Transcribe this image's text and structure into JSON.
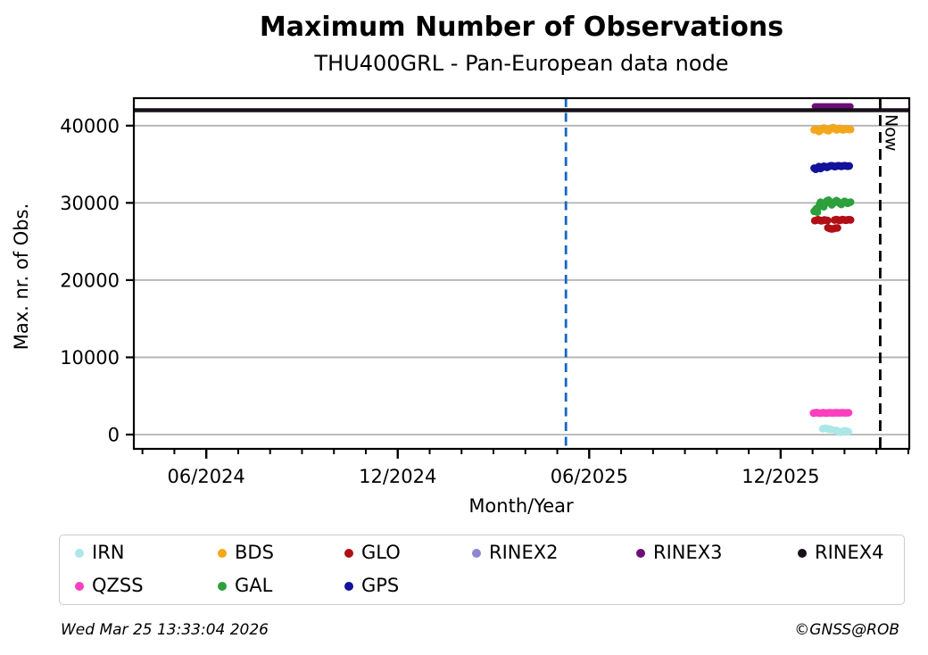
{
  "figure": {
    "title": "Maximum Number of Observations",
    "subtitle": "THU400GRL - Pan-European data node"
  },
  "footer": {
    "timestamp": "Wed Mar 25 13:33:04 2026",
    "credit": "©GNSS@ROB"
  },
  "colors": {
    "grid": "#b2b2b2",
    "frame": "#000000",
    "start_line": "#1667c1",
    "now_line": "#000000"
  },
  "chart_data": {
    "type": "scatter",
    "title": "Maximum Number of Observations",
    "subtitle": "THU400GRL - Pan-European data node",
    "xlabel": "Month/Year",
    "ylabel": "Max. nr. of Obs.",
    "x_unit": "months relative to 06/2024 tick",
    "xlim_months": [
      -2.27,
      22.03
    ],
    "ylim": [
      -1850,
      43560
    ],
    "yticks": [
      0,
      10000,
      20000,
      30000,
      40000
    ],
    "ytick_labels": [
      "0",
      "10000",
      "20000",
      "30000",
      "40000"
    ],
    "x_major_ticks": [
      {
        "m": 0,
        "label": "06/2024"
      },
      {
        "m": 6,
        "label": "12/2024"
      },
      {
        "m": 12,
        "label": "06/2025"
      },
      {
        "m": 18,
        "label": "12/2025"
      }
    ],
    "x_minor_tick_step_months": 1,
    "grid": {
      "horizontal": true,
      "vertical": false,
      "color": "#b2b2b2"
    },
    "legend_position": "below plot, 6 columns, 2 rows",
    "reference_lines": [
      {
        "name": "start-marker",
        "m": 11.27,
        "color": "#1667c1",
        "dash": "10 6.5",
        "width": 2.8,
        "label": ""
      },
      {
        "name": "now-marker",
        "m": 21.12,
        "color": "#000000",
        "dash": "12 7",
        "width": 2.8,
        "label": "Now"
      }
    ],
    "series": [
      {
        "name": "QZSS",
        "color": "#fb3fbe",
        "draw": "markers",
        "r": 4.3,
        "points": [
          [
            19.03,
            2780
          ],
          [
            19.08,
            2820
          ],
          [
            19.13,
            2850
          ],
          [
            19.18,
            2800
          ],
          [
            19.23,
            2760
          ],
          [
            19.28,
            2800
          ],
          [
            19.33,
            2840
          ],
          [
            19.38,
            2810
          ],
          [
            19.43,
            2780
          ],
          [
            19.48,
            2810
          ],
          [
            19.53,
            2840
          ],
          [
            19.58,
            2820
          ],
          [
            19.63,
            2790
          ],
          [
            19.68,
            2810
          ],
          [
            19.73,
            2840
          ],
          [
            19.78,
            2820
          ],
          [
            19.83,
            2800
          ],
          [
            19.88,
            2820
          ],
          [
            19.93,
            2840
          ],
          [
            19.98,
            2820
          ],
          [
            20.03,
            2800
          ],
          [
            20.08,
            2820
          ],
          [
            20.13,
            2830
          ]
        ]
      },
      {
        "name": "IRN",
        "color": "#abe7e9",
        "draw": "markers",
        "r": 4.3,
        "points": [
          [
            19.32,
            750
          ],
          [
            19.37,
            800
          ],
          [
            19.42,
            820
          ],
          [
            19.47,
            760
          ],
          [
            19.52,
            700
          ],
          [
            19.57,
            680
          ],
          [
            19.72,
            550
          ],
          [
            19.77,
            480
          ],
          [
            19.82,
            380
          ],
          [
            19.87,
            300
          ],
          [
            19.92,
            350
          ],
          [
            19.97,
            450
          ],
          [
            20.02,
            500
          ],
          [
            20.07,
            420
          ],
          [
            20.12,
            380
          ]
        ]
      },
      {
        "name": "BDS",
        "color": "#f3a71b",
        "draw": "markers",
        "r": 4.3,
        "points": [
          [
            19.05,
            39450
          ],
          [
            19.1,
            39550
          ],
          [
            19.15,
            39400
          ],
          [
            19.2,
            39250
          ],
          [
            19.25,
            39400
          ],
          [
            19.3,
            39600
          ],
          [
            19.35,
            39700
          ],
          [
            19.4,
            39550
          ],
          [
            19.45,
            39400
          ],
          [
            19.5,
            39350
          ],
          [
            19.55,
            39500
          ],
          [
            19.6,
            39700
          ],
          [
            19.65,
            39750
          ],
          [
            19.7,
            39600
          ],
          [
            19.75,
            39450
          ],
          [
            19.8,
            39550
          ],
          [
            19.85,
            39650
          ],
          [
            19.9,
            39550
          ],
          [
            19.95,
            39450
          ],
          [
            20.0,
            39500
          ],
          [
            20.05,
            39600
          ],
          [
            20.1,
            39550
          ],
          [
            20.15,
            39500
          ],
          [
            20.19,
            39500
          ]
        ]
      },
      {
        "name": "GPS",
        "color": "#12129b",
        "draw": "markers",
        "r": 4.3,
        "points": [
          [
            19.05,
            34500
          ],
          [
            19.1,
            34350
          ],
          [
            19.15,
            34550
          ],
          [
            19.2,
            34700
          ],
          [
            19.25,
            34450
          ],
          [
            19.3,
            34600
          ],
          [
            19.35,
            34750
          ],
          [
            19.4,
            34700
          ],
          [
            19.45,
            34600
          ],
          [
            19.5,
            34700
          ],
          [
            19.55,
            34780
          ],
          [
            19.6,
            34820
          ],
          [
            19.65,
            34760
          ],
          [
            19.7,
            34700
          ],
          [
            19.75,
            34760
          ],
          [
            19.8,
            34820
          ],
          [
            19.85,
            34780
          ],
          [
            19.9,
            34730
          ],
          [
            19.95,
            34780
          ],
          [
            20.0,
            34820
          ],
          [
            20.05,
            34780
          ],
          [
            20.1,
            34740
          ],
          [
            20.15,
            34780
          ]
        ]
      },
      {
        "name": "GAL",
        "color": "#2da03c",
        "draw": "markers",
        "r": 4.3,
        "points": [
          [
            19.05,
            28900
          ],
          [
            19.08,
            29050
          ],
          [
            19.12,
            29250
          ],
          [
            19.15,
            28800
          ],
          [
            19.18,
            29400
          ],
          [
            19.22,
            29800
          ],
          [
            19.25,
            30100
          ],
          [
            19.3,
            29700
          ],
          [
            19.35,
            29500
          ],
          [
            19.4,
            29950
          ],
          [
            19.45,
            30250
          ],
          [
            19.5,
            30350
          ],
          [
            19.55,
            30050
          ],
          [
            19.6,
            29750
          ],
          [
            19.65,
            29950
          ],
          [
            19.7,
            30150
          ],
          [
            19.75,
            30300
          ],
          [
            19.8,
            30150
          ],
          [
            19.85,
            29950
          ],
          [
            19.9,
            29800
          ],
          [
            19.95,
            30000
          ],
          [
            20.0,
            30200
          ],
          [
            20.05,
            30100
          ],
          [
            20.1,
            29950
          ],
          [
            20.15,
            30050
          ],
          [
            20.19,
            30100
          ]
        ]
      },
      {
        "name": "GLO",
        "color": "#b01015",
        "draw": "markers",
        "r": 4.3,
        "points": [
          [
            19.07,
            27700
          ],
          [
            19.12,
            27760
          ],
          [
            19.17,
            27820
          ],
          [
            19.22,
            27760
          ],
          [
            19.27,
            27680
          ],
          [
            19.32,
            27720
          ],
          [
            19.37,
            27790
          ],
          [
            19.42,
            27760
          ],
          [
            19.47,
            27720
          ],
          [
            19.48,
            26780
          ],
          [
            19.54,
            26680
          ],
          [
            19.6,
            26620
          ],
          [
            19.66,
            26660
          ],
          [
            19.72,
            26740
          ],
          [
            19.78,
            26760
          ],
          [
            19.69,
            27780
          ],
          [
            19.74,
            27840
          ],
          [
            19.79,
            27800
          ],
          [
            19.84,
            27740
          ],
          [
            19.89,
            27780
          ],
          [
            19.94,
            27840
          ],
          [
            19.99,
            27800
          ],
          [
            20.04,
            27750
          ],
          [
            20.09,
            27790
          ],
          [
            20.14,
            27830
          ],
          [
            20.19,
            27790
          ]
        ]
      },
      {
        "name": "RINEX3",
        "color": "#6b0f75",
        "draw": "line",
        "width": 7,
        "cap": "round",
        "line": [
          [
            19.07,
            42500
          ],
          [
            20.19,
            42500
          ]
        ]
      },
      {
        "name": "RINEX4",
        "color": "#171019",
        "draw": "line",
        "width": 4.5,
        "cap": "butt",
        "line": [
          [
            -2.27,
            42000
          ],
          [
            22.03,
            42000
          ]
        ]
      }
    ]
  },
  "legend": {
    "items": [
      {
        "label": "IRN",
        "color": "#abe7e9"
      },
      {
        "label": "BDS",
        "color": "#f3a71b"
      },
      {
        "label": "GLO",
        "color": "#b01015"
      },
      {
        "label": "RINEX2",
        "color": "#8e86d0"
      },
      {
        "label": "RINEX3",
        "color": "#6b0f75"
      },
      {
        "label": "RINEX4",
        "color": "#171019"
      },
      {
        "label": "QZSS",
        "color": "#fb3fbe"
      },
      {
        "label": "GAL",
        "color": "#2da03c"
      },
      {
        "label": "GPS",
        "color": "#12129b"
      }
    ]
  }
}
